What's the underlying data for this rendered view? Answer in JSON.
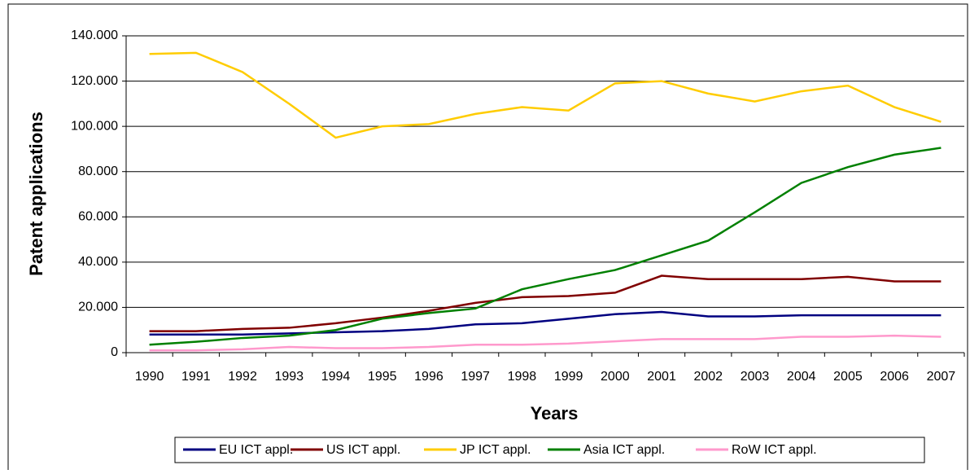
{
  "chart_data": {
    "type": "line",
    "x_label": "Years",
    "y_label": "Patent applications",
    "categories": [
      "1990",
      "1991",
      "1992",
      "1993",
      "1994",
      "1995",
      "1996",
      "1997",
      "1998",
      "1999",
      "2000",
      "2001",
      "2002",
      "2003",
      "2004",
      "2005",
      "2006",
      "2007"
    ],
    "series": [
      {
        "name": "EU ICT appl.",
        "color": "#000080",
        "values": [
          8000,
          8000,
          8000,
          8500,
          9000,
          9500,
          10500,
          12500,
          13000,
          15000,
          17000,
          18000,
          16000,
          16000,
          16500,
          16500,
          16500,
          16500
        ]
      },
      {
        "name": "US ICT appl.",
        "color": "#800000",
        "values": [
          9500,
          9500,
          10500,
          11000,
          13000,
          15500,
          18500,
          22000,
          24500,
          25000,
          26500,
          34000,
          32500,
          32500,
          32500,
          33500,
          31500,
          31500
        ]
      },
      {
        "name": "JP ICT appl.",
        "color": "#ffcc00",
        "values": [
          132000,
          132500,
          124000,
          110000,
          95000,
          100000,
          101000,
          105500,
          108500,
          107000,
          119000,
          120000,
          114500,
          111000,
          115500,
          118000,
          108500,
          102000
        ]
      },
      {
        "name": "Asia ICT appl.",
        "color": "#008000",
        "values": [
          3500,
          4800,
          6500,
          7500,
          10000,
          15000,
          17500,
          19500,
          28000,
          32500,
          36500,
          43000,
          49500,
          62000,
          75000,
          82000,
          87500,
          90500
        ]
      },
      {
        "name": "RoW ICT appl.",
        "color": "#ff99cc",
        "values": [
          1000,
          1000,
          1500,
          2500,
          2000,
          2000,
          2500,
          3500,
          3500,
          4000,
          5000,
          6000,
          6000,
          6000,
          7000,
          7000,
          7500,
          7000
        ]
      }
    ],
    "ylim": [
      0,
      140000
    ],
    "yticks": [
      0,
      {
        "value": 20000,
        "label": "20.000"
      },
      {
        "value": 40000,
        "label": "40.000"
      },
      {
        "value": 60000,
        "label": "60.000"
      },
      {
        "value": 80000,
        "label": "80.000"
      },
      {
        "value": 100000,
        "label": "100.000"
      },
      {
        "value": 120000,
        "label": "120.000"
      },
      {
        "value": 140000,
        "label": "140.000"
      }
    ],
    "grid": true,
    "legend": "bottom"
  }
}
